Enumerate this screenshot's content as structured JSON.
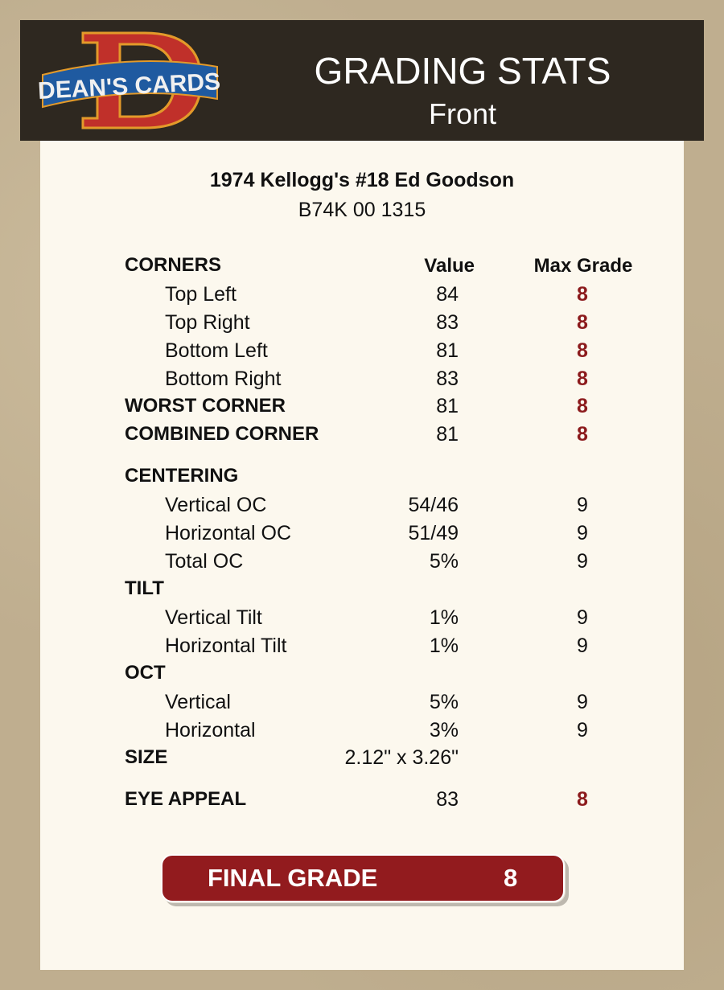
{
  "header": {
    "logo_text": "DEAN'S CARDS",
    "title": "GRADING STATS",
    "subtitle": "Front"
  },
  "card": {
    "name": "1974 Kellogg's #18 Ed Goodson",
    "cert": "B74K 00 1315"
  },
  "colors": {
    "header_bg": "#2e2820",
    "accent_red": "#921b1e",
    "panel_bg": "#fcf8ee"
  },
  "columns": {
    "value": "Value",
    "max_grade": "Max Grade"
  },
  "rows": [
    {
      "label": "CORNERS",
      "type": "header",
      "value": "",
      "max": ""
    },
    {
      "label": "Top Left",
      "type": "item",
      "value": "84",
      "max": "8",
      "red": true
    },
    {
      "label": "Top Right",
      "type": "item",
      "value": "83",
      "max": "8",
      "red": true
    },
    {
      "label": "Bottom Left",
      "type": "item",
      "value": "81",
      "max": "8",
      "red": true
    },
    {
      "label": "Bottom Right",
      "type": "item",
      "value": "83",
      "max": "8",
      "red": true
    },
    {
      "label": "WORST CORNER",
      "type": "header",
      "value": "81",
      "max": "8",
      "red": true
    },
    {
      "label": "COMBINED CORNER",
      "type": "header",
      "value": "81",
      "max": "8",
      "red": true
    },
    {
      "label": "CENTERING",
      "type": "header",
      "value": "",
      "max": ""
    },
    {
      "label": "Vertical OC",
      "type": "item",
      "value": "54/46",
      "max": "9"
    },
    {
      "label": "Horizontal OC",
      "type": "item",
      "value": "51/49",
      "max": "9"
    },
    {
      "label": "Total OC",
      "type": "item",
      "value": "5%",
      "max": "9"
    },
    {
      "label": "TILT",
      "type": "header",
      "value": "",
      "max": ""
    },
    {
      "label": "Vertical Tilt",
      "type": "item",
      "value": "1%",
      "max": "9"
    },
    {
      "label": "Horizontal Tilt",
      "type": "item",
      "value": "1%",
      "max": "9"
    },
    {
      "label": "OCT",
      "type": "header",
      "value": "",
      "max": ""
    },
    {
      "label": "Vertical",
      "type": "item",
      "value": "5%",
      "max": "9"
    },
    {
      "label": "Horizontal",
      "type": "item",
      "value": "3%",
      "max": "9"
    },
    {
      "label": "SIZE",
      "type": "header",
      "value": "2.12\" x 3.26\"",
      "max": ""
    },
    {
      "label": "EYE APPEAL",
      "type": "header",
      "value": "83",
      "max": "8",
      "red": true
    }
  ],
  "final": {
    "label": "FINAL GRADE",
    "value": "8"
  }
}
